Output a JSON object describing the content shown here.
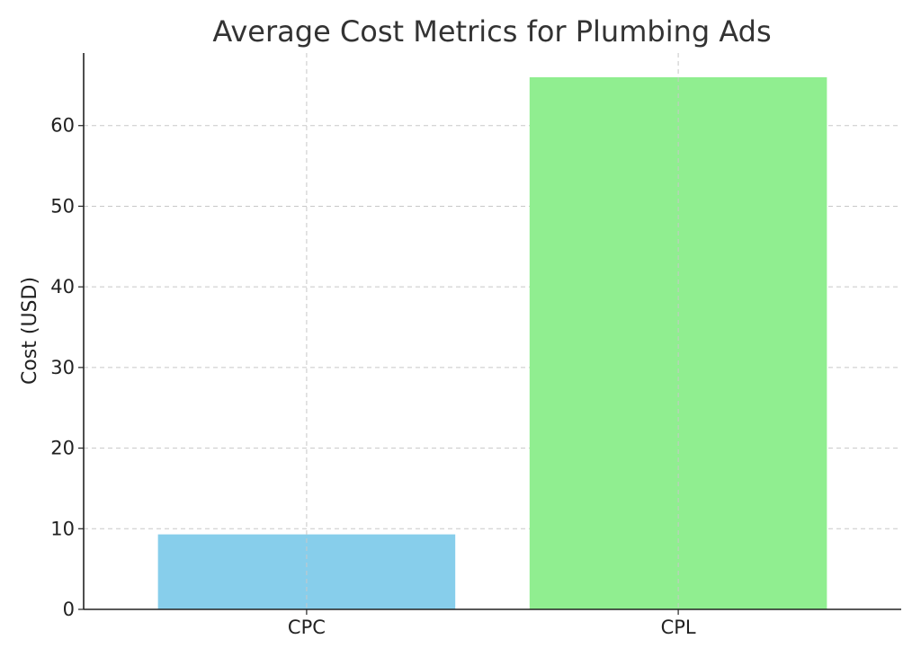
{
  "chart_data": {
    "type": "bar",
    "title": "Average Cost Metrics for Plumbing Ads",
    "xlabel": "",
    "ylabel": "Cost (USD)",
    "categories": [
      "CPC",
      "CPL"
    ],
    "values": [
      9.3,
      66.0
    ],
    "colors": [
      "#87CEEB",
      "#90EE90"
    ],
    "ylim": [
      0,
      69
    ],
    "yticks": [
      0,
      10,
      20,
      30,
      40,
      50,
      60
    ],
    "grid": true
  }
}
